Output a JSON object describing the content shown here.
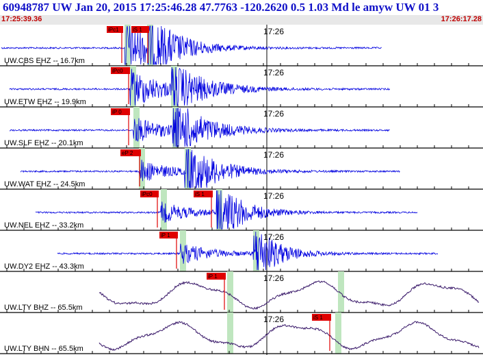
{
  "header": {
    "title": "60948787 UW Jan 20, 2015 17:25:46.28   47.7763 -120.2620  0.5 1.03 Md le amyw UW 01   3",
    "start_time": "17:25:39.36",
    "end_time": "17:26:17.28",
    "minute_mark": "17:26"
  },
  "colors": {
    "trace": "#0000e0",
    "long_period_trace": "#3a1a6a",
    "pick_box": "#e00000",
    "pick_window": "#bfe6bf",
    "title": "#1010c8",
    "time_text": "#c00000",
    "axis": "#000000"
  },
  "traces": [
    {
      "label": "UW.CBS EHZ -- 16.7km",
      "picks": [
        "iPc1",
        "iS 1"
      ],
      "type": "short"
    },
    {
      "label": "UW.ETW EHZ -- 19.9km",
      "picks": [
        "iPc0"
      ],
      "type": "short"
    },
    {
      "label": "UW.SLF EHZ -- 20.1km",
      "picks": [
        "iP 0"
      ],
      "type": "short"
    },
    {
      "label": "UW.WAT EHZ -- 24.5km",
      "picks": [
        "eP 2"
      ],
      "type": "short"
    },
    {
      "label": "UW.NEL EHZ -- 33.2km",
      "picks": [
        "iPc0",
        "iS 1"
      ],
      "type": "short"
    },
    {
      "label": "UW.DY2 EHZ -- 43.3km",
      "picks": [
        "iP 1"
      ],
      "type": "short"
    },
    {
      "label": "UW.LTY BHZ -- 65.5km",
      "picks": [
        "iP 1"
      ],
      "type": "long"
    },
    {
      "label": "UW.LTY BHN -- 65.5km",
      "picks": [
        "iS 1"
      ],
      "type": "long"
    }
  ]
}
